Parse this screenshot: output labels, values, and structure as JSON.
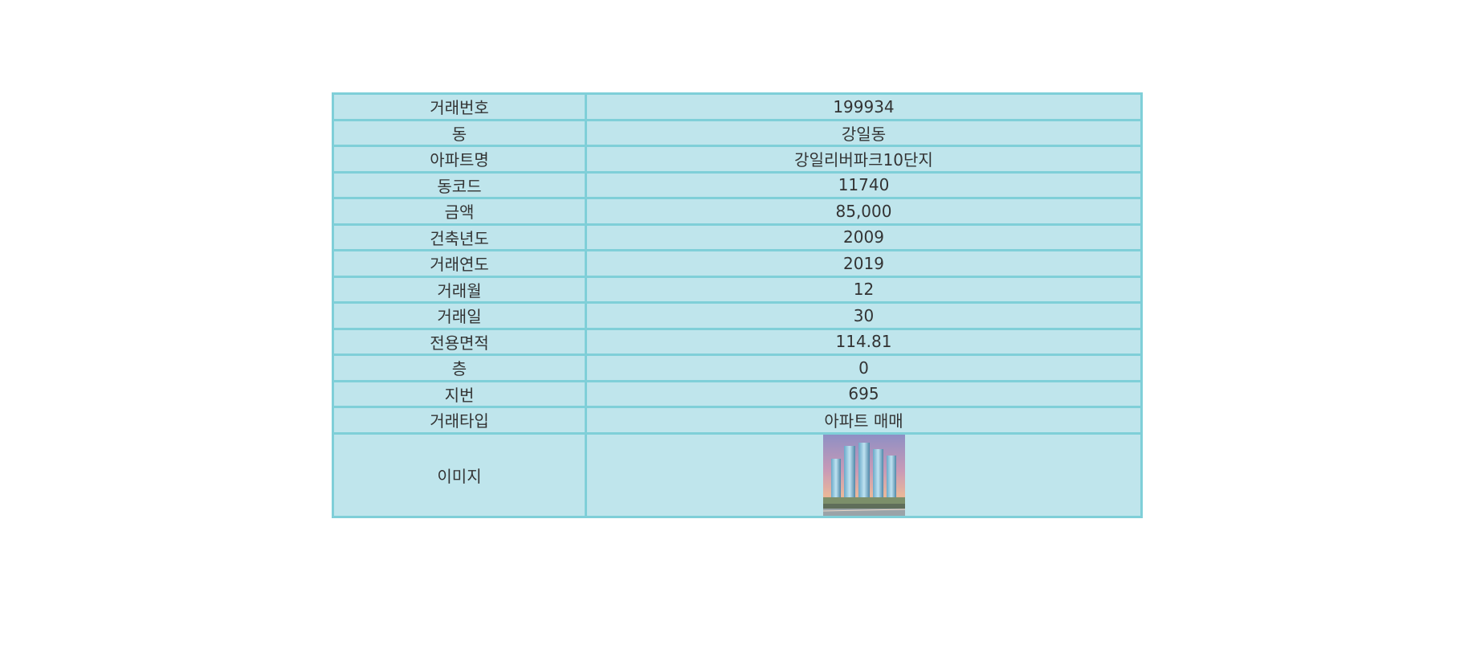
{
  "rows": [
    {
      "label": "거래번호",
      "value": "199934"
    },
    {
      "label": "동",
      "value": "강일동"
    },
    {
      "label": "아파트명",
      "value": "강일리버파크10단지"
    },
    {
      "label": "동코드",
      "value": "11740"
    },
    {
      "label": "금액",
      "value": "85,000"
    },
    {
      "label": "건축년도",
      "value": "2009"
    },
    {
      "label": "거래연도",
      "value": "2019"
    },
    {
      "label": "거래월",
      "value": "12"
    },
    {
      "label": "거래일",
      "value": "30"
    },
    {
      "label": "전용면적",
      "value": "114.81"
    },
    {
      "label": "층",
      "value": "0"
    },
    {
      "label": "지번",
      "value": "695"
    },
    {
      "label": "거래타입",
      "value": "아파트 매매"
    }
  ],
  "image_row": {
    "label": "이미지",
    "image_icon": "apartment-building-photo"
  },
  "colors": {
    "cell_background": "#bfe5ec",
    "border": "#7fcfd8",
    "text": "#333333"
  }
}
